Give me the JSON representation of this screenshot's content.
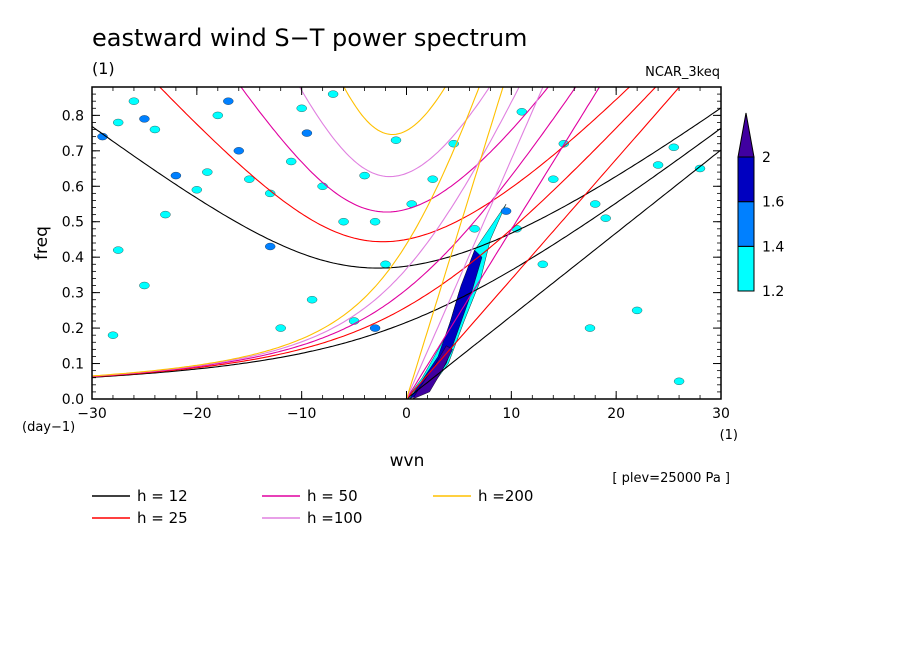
{
  "chart_data": {
    "type": "contour",
    "title": "eastward wind S−T power spectrum",
    "subtitle_left": "(1)",
    "subtitle_right": "NCAR_3keq",
    "xlabel": "wvn",
    "xunit": "(1)",
    "ylabel": "freq",
    "yunit": "(day−1)",
    "xlim": [
      -30,
      30
    ],
    "ylim": [
      0,
      0.88
    ],
    "xticks": [
      -30,
      -20,
      -10,
      0,
      10,
      20,
      30
    ],
    "xtick_labels": [
      "−30",
      "−20",
      "−10",
      "0",
      "10",
      "20",
      "30"
    ],
    "yticks": [
      0,
      0.1,
      0.2,
      0.3,
      0.4,
      0.5,
      0.6,
      0.7,
      0.8
    ],
    "ytick_labels": [
      "0.0",
      "0.1",
      "0.2",
      "0.3",
      "0.4",
      "0.5",
      "0.6",
      "0.7",
      "0.8"
    ],
    "note": "[ plev=25000 Pa ]",
    "colorbar": {
      "levels": [
        "1.2",
        "1.4",
        "1.6",
        "2"
      ],
      "colors": [
        "#00ffff",
        "#0080ff",
        "#0000c0",
        "#4000a0"
      ]
    },
    "dispersion_curves": [
      {
        "h": 12,
        "label": "h = 12",
        "color": "#000000"
      },
      {
        "h": 25,
        "label": "h = 25",
        "color": "#ff0000"
      },
      {
        "h": 50,
        "label": "h = 50",
        "color": "#e000a0"
      },
      {
        "h": 100,
        "label": "h =100",
        "color": "#e080e0"
      },
      {
        "h": 200,
        "label": "h =200",
        "color": "#ffc000"
      }
    ],
    "filled_regions": [
      {
        "level": 1.2,
        "points": [
          [
            0,
            0
          ],
          [
            2,
            0.02
          ],
          [
            4,
            0.1
          ],
          [
            5.5,
            0.22
          ],
          [
            7,
            0.33
          ],
          [
            8,
            0.45
          ],
          [
            9.5,
            0.55
          ],
          [
            6.5,
            0.42
          ],
          [
            5,
            0.3
          ],
          [
            3.8,
            0.18
          ],
          [
            1.5,
            0.06
          ]
        ]
      },
      {
        "level": 1.6,
        "points": [
          [
            0.3,
            0
          ],
          [
            2.2,
            0.03
          ],
          [
            3.8,
            0.1
          ],
          [
            5,
            0.2
          ],
          [
            6.2,
            0.3
          ],
          [
            7.2,
            0.4
          ],
          [
            6.5,
            0.42
          ],
          [
            5.2,
            0.32
          ],
          [
            4.2,
            0.22
          ],
          [
            3,
            0.12
          ],
          [
            1.2,
            0.04
          ]
        ]
      },
      {
        "level": 2.0,
        "points": [
          [
            0.6,
            0
          ],
          [
            2.2,
            0.02
          ],
          [
            3.4,
            0.08
          ],
          [
            4.4,
            0.14
          ],
          [
            3.8,
            0.15
          ],
          [
            2.6,
            0.09
          ],
          [
            1.2,
            0.03
          ]
        ]
      }
    ],
    "spots": [
      [
        -29,
        0.74,
        1.4
      ],
      [
        -27.5,
        0.78,
        1.2
      ],
      [
        -26,
        0.84,
        1.2
      ],
      [
        -25,
        0.79,
        1.4
      ],
      [
        -24,
        0.76,
        1.2
      ],
      [
        -22,
        0.63,
        1.4
      ],
      [
        -19,
        0.64,
        1.2
      ],
      [
        -17,
        0.84,
        1.4
      ],
      [
        -16,
        0.7,
        1.4
      ],
      [
        -15,
        0.62,
        1.2
      ],
      [
        -13,
        0.58,
        1.2
      ],
      [
        -11,
        0.67,
        1.2
      ],
      [
        -10,
        0.82,
        1.2
      ],
      [
        -9.5,
        0.75,
        1.4
      ],
      [
        -8,
        0.6,
        1.2
      ],
      [
        -6,
        0.5,
        1.2
      ],
      [
        -4,
        0.63,
        1.2
      ],
      [
        -3,
        0.5,
        1.2
      ],
      [
        -2,
        0.38,
        1.2
      ],
      [
        -1,
        0.73,
        1.2
      ],
      [
        -27.5,
        0.42,
        1.2
      ],
      [
        -23,
        0.52,
        1.2
      ],
      [
        -20,
        0.59,
        1.2
      ],
      [
        -13,
        0.43,
        1.4
      ],
      [
        -12,
        0.2,
        1.2
      ],
      [
        -9,
        0.28,
        1.2
      ],
      [
        -5,
        0.22,
        1.2
      ],
      [
        -3,
        0.2,
        1.4
      ],
      [
        -25,
        0.32,
        1.2
      ],
      [
        -28,
        0.18,
        1.2
      ],
      [
        0.5,
        0.55,
        1.2
      ],
      [
        2.5,
        0.62,
        1.2
      ],
      [
        4.5,
        0.72,
        1.2
      ],
      [
        6.5,
        0.48,
        1.2
      ],
      [
        9.5,
        0.53,
        1.4
      ],
      [
        10.5,
        0.48,
        1.2
      ],
      [
        11,
        0.81,
        1.2
      ],
      [
        14,
        0.62,
        1.2
      ],
      [
        15,
        0.72,
        1.2
      ],
      [
        18,
        0.55,
        1.2
      ],
      [
        19,
        0.51,
        1.2
      ],
      [
        17.5,
        0.2,
        1.2
      ],
      [
        22,
        0.25,
        1.2
      ],
      [
        24,
        0.66,
        1.2
      ],
      [
        25.5,
        0.71,
        1.2
      ],
      [
        26,
        0.05,
        1.2
      ],
      [
        28,
        0.65,
        1.2
      ],
      [
        13,
        0.38,
        1.2
      ],
      [
        -18,
        0.8,
        1.2
      ],
      [
        -7,
        0.86,
        1.2
      ]
    ]
  }
}
